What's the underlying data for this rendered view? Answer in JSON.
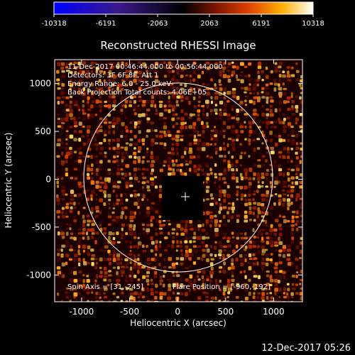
{
  "colorbar": {
    "tick_labels": [
      "-10318",
      "-6191",
      "-2063",
      "2063",
      "6191",
      "10318"
    ],
    "colors": [
      "#0000ff",
      "#3a1a8a",
      "#000000",
      "#7a1400",
      "#e04000",
      "#ffb000",
      "#ffffff"
    ]
  },
  "plot": {
    "title": "Reconstructed RHESSI Image",
    "info_lines": [
      "11-Dec-2017 00:46:44.000 to 00:56:44.000",
      "Detectors: 3F 6F 8F, Att 1",
      "Energy Range: 6.0 - 25.0 keV",
      "Back Projection   Total counts: 4.06E+05"
    ],
    "spin_axis": "Spin Axis = [31,-245]",
    "flare_position": "Flare Position = [-960,-192]",
    "xlabel": "Heliocentric X (arcsec)",
    "ylabel": "Heliocentric Y (arcsec)",
    "x_ticks": [
      "-1000",
      "-500",
      "0",
      "500",
      "1000"
    ],
    "y_ticks": [
      "1000",
      "500",
      "0",
      "-500",
      "-1000"
    ],
    "xlim": [
      -1280,
      1300
    ],
    "ylim": [
      -1280,
      1250
    ],
    "solar_limb_radius_arcsec": 970,
    "center_marker": [
      60,
      0
    ]
  },
  "footer": {
    "timestamp": "12-Dec-2017 05:26"
  }
}
